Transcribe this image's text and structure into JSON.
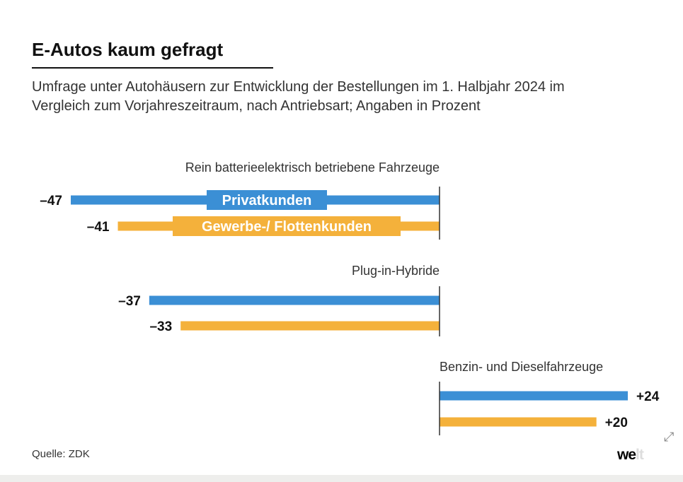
{
  "header": {
    "title": "E-Autos kaum gefragt",
    "subtitle": "Umfrage unter Autohäusern zur Entwicklung der Bestellungen im 1. Halbjahr 2024 im Vergleich zum Vorjahreszeitraum, nach Antriebsart; Angaben in Prozent"
  },
  "footer": {
    "source": "Quelle: ZDK",
    "logo": "welt",
    "expand_icon": "expand-arrows-icon"
  },
  "chart_data": {
    "type": "bar",
    "orientation": "horizontal",
    "title": "E-Autos kaum gefragt",
    "categories": [
      "Rein batterieelektrisch betriebene Fahrzeuge",
      "Plug-in-Hybride",
      "Benzin- und Dieselfahrzeuge"
    ],
    "series": [
      {
        "name": "Privatkunden",
        "color": "#3b8fd5",
        "values": [
          -47,
          -37,
          24
        ],
        "labels": [
          "–47",
          "–37",
          "+24"
        ]
      },
      {
        "name": "Gewerbe-/ Flottenkunden",
        "color": "#f4b13b",
        "values": [
          -41,
          -33,
          20
        ],
        "labels": [
          "–41",
          "–33",
          "+20"
        ]
      }
    ],
    "xlim": [
      -47,
      30
    ],
    "grid": false,
    "legend": "inline-in-first-group"
  }
}
